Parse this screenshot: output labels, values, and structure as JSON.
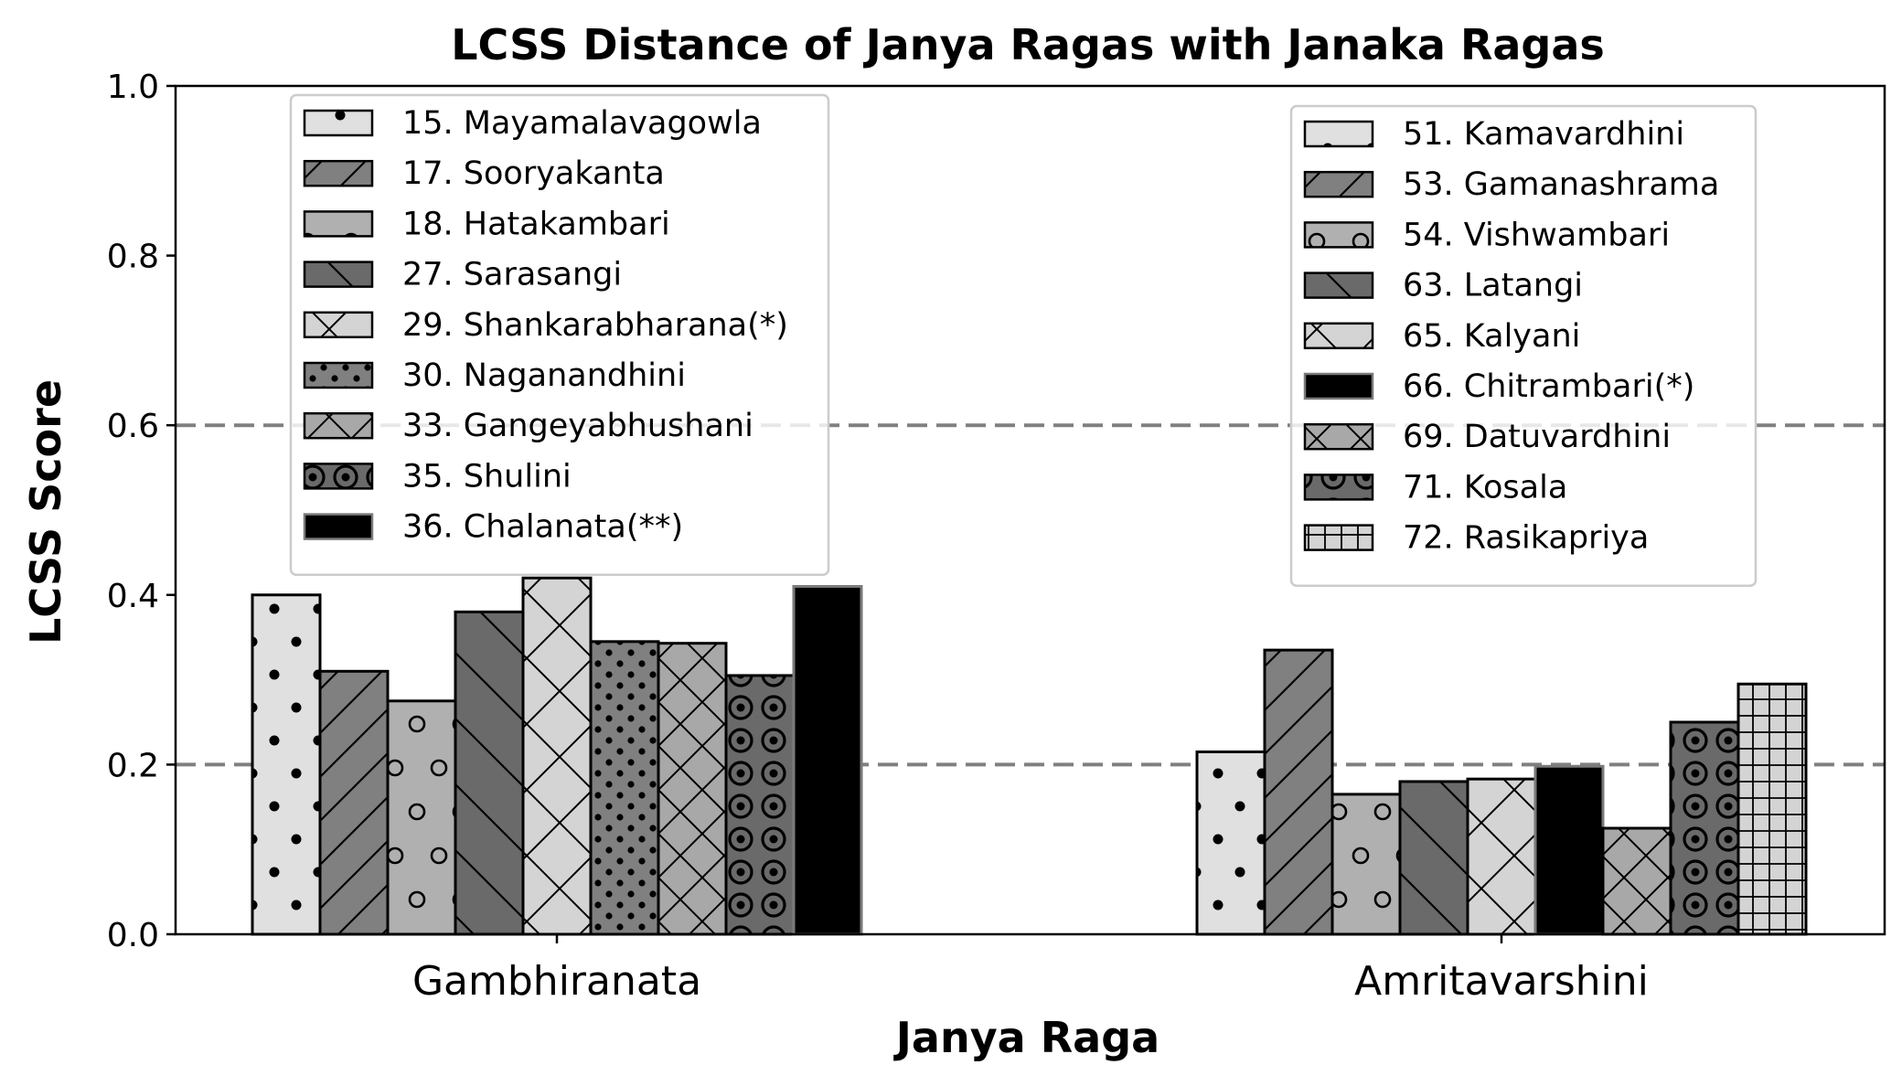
{
  "chart_data": {
    "type": "bar",
    "title": "LCSS Distance of Janya Ragas with Janaka Ragas",
    "xlabel": "Janya Raga",
    "ylabel": "LCSS Score",
    "ylim": [
      0,
      1.0
    ],
    "yticks": [
      "0.0",
      "0.2",
      "0.4",
      "0.6",
      "0.8",
      "1.0"
    ],
    "reference_lines": [
      0.2,
      0.6
    ],
    "groups": [
      {
        "name": "Gambhiranata",
        "legend_position": "top-left",
        "series": [
          {
            "name": "15. Mayamalavagowla",
            "value": 0.4,
            "color": "#e0e0e0",
            "pattern": "dots-large"
          },
          {
            "name": "17. Sooryakanta",
            "value": 0.31,
            "color": "#808080",
            "pattern": "diag-fwd"
          },
          {
            "name": "18. Hatakambari",
            "value": 0.275,
            "color": "#b0b0b0",
            "pattern": "rings"
          },
          {
            "name": "27. Sarasangi",
            "value": 0.38,
            "color": "#6a6a6a",
            "pattern": "diag-back"
          },
          {
            "name": "29. Shankarabharana(*)",
            "value": 0.42,
            "color": "#d4d4d4",
            "pattern": "cross-diag"
          },
          {
            "name": "30. Naganandhini",
            "value": 0.345,
            "color": "#808080",
            "pattern": "dots-small"
          },
          {
            "name": "33. Gangeyabhushani",
            "value": 0.343,
            "color": "#a8a8a8",
            "pattern": "cross-diag-dense"
          },
          {
            "name": "35. Shulini",
            "value": 0.305,
            "color": "#6a6a6a",
            "pattern": "targets"
          },
          {
            "name": "36. Chalanata(**)",
            "value": 0.41,
            "color": "#000000",
            "pattern": "none"
          }
        ]
      },
      {
        "name": "Amritavarshini",
        "legend_position": "top-right",
        "series": [
          {
            "name": "51. Kamavardhini",
            "value": 0.215,
            "color": "#e0e0e0",
            "pattern": "dots-large"
          },
          {
            "name": "53. Gamanashrama",
            "value": 0.335,
            "color": "#808080",
            "pattern": "diag-fwd"
          },
          {
            "name": "54. Vishwambari",
            "value": 0.165,
            "color": "#b0b0b0",
            "pattern": "rings"
          },
          {
            "name": "63. Latangi",
            "value": 0.18,
            "color": "#6a6a6a",
            "pattern": "diag-back"
          },
          {
            "name": "65. Kalyani",
            "value": 0.183,
            "color": "#d4d4d4",
            "pattern": "cross-diag"
          },
          {
            "name": "66. Chitrambari(*)",
            "value": 0.198,
            "color": "#000000",
            "pattern": "none"
          },
          {
            "name": "69. Datuvardhini",
            "value": 0.125,
            "color": "#a8a8a8",
            "pattern": "cross-diag-dense"
          },
          {
            "name": "71. Kosala",
            "value": 0.25,
            "color": "#6a6a6a",
            "pattern": "targets"
          },
          {
            "name": "72. Rasikapriya",
            "value": 0.295,
            "color": "#d4d4d4",
            "pattern": "grid"
          }
        ]
      }
    ]
  }
}
